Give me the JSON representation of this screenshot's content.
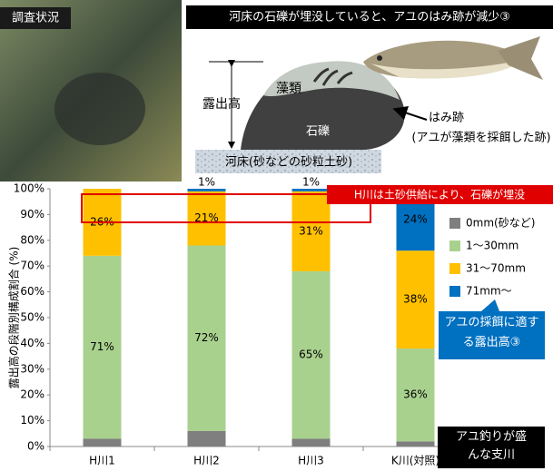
{
  "figure": {
    "photo_label": "調査状況",
    "title": "河床の石礫が埋没していると、アユのはみ跡が減少③",
    "labels": {
      "exposure": "露出高",
      "algae": "藻類",
      "stone": "石礫",
      "grazing": "はみ跡",
      "grazing_note": "(アユが藻類を採餌した跡)",
      "bed": "河床(砂などの砂粒土砂)"
    }
  },
  "chart_data": {
    "type": "stacked_bar",
    "y_label": "露出高の段階別構成割合 (%)",
    "categories": [
      "H川1",
      "H川2",
      "H川3",
      "K川(対照)"
    ],
    "series": [
      {
        "name": "0mm(砂など)",
        "color": "#7f7f7f",
        "values": [
          3,
          6,
          3,
          2
        ]
      },
      {
        "name": "1～30mm",
        "color": "#a9d18e",
        "values": [
          71,
          72,
          65,
          36
        ],
        "value_labels": [
          "71%",
          "72%",
          "65%",
          "36%"
        ]
      },
      {
        "name": "31～70mm",
        "color": "#ffc000",
        "values": [
          26,
          21,
          31,
          38
        ],
        "value_labels": [
          "26%",
          "21%",
          "31%",
          "38%"
        ]
      },
      {
        "name": "71mm～",
        "color": "#0070c0",
        "values": [
          0,
          1,
          1,
          24
        ],
        "value_labels": [
          null,
          "1%",
          "1%",
          "24%"
        ]
      }
    ],
    "ylim": [
      0,
      100
    ],
    "yticks": [
      {
        "value": 0,
        "label": "0%"
      },
      {
        "value": 10,
        "label": "10%"
      },
      {
        "value": 20,
        "label": "20%"
      },
      {
        "value": 30,
        "label": "30%"
      },
      {
        "value": 40,
        "label": "40%"
      },
      {
        "value": 50,
        "label": "50%"
      },
      {
        "value": 60,
        "label": "60%"
      },
      {
        "value": 70,
        "label": "70%"
      },
      {
        "value": 80,
        "label": "80%"
      },
      {
        "value": 90,
        "label": "90%"
      },
      {
        "value": 100,
        "label": "100%"
      }
    ],
    "legend": "right",
    "annotations": [
      "H川は土砂供給により、石礫が埋没",
      "アユの採餌に適する露出高③",
      "アユ釣りが盛んな支川"
    ]
  }
}
